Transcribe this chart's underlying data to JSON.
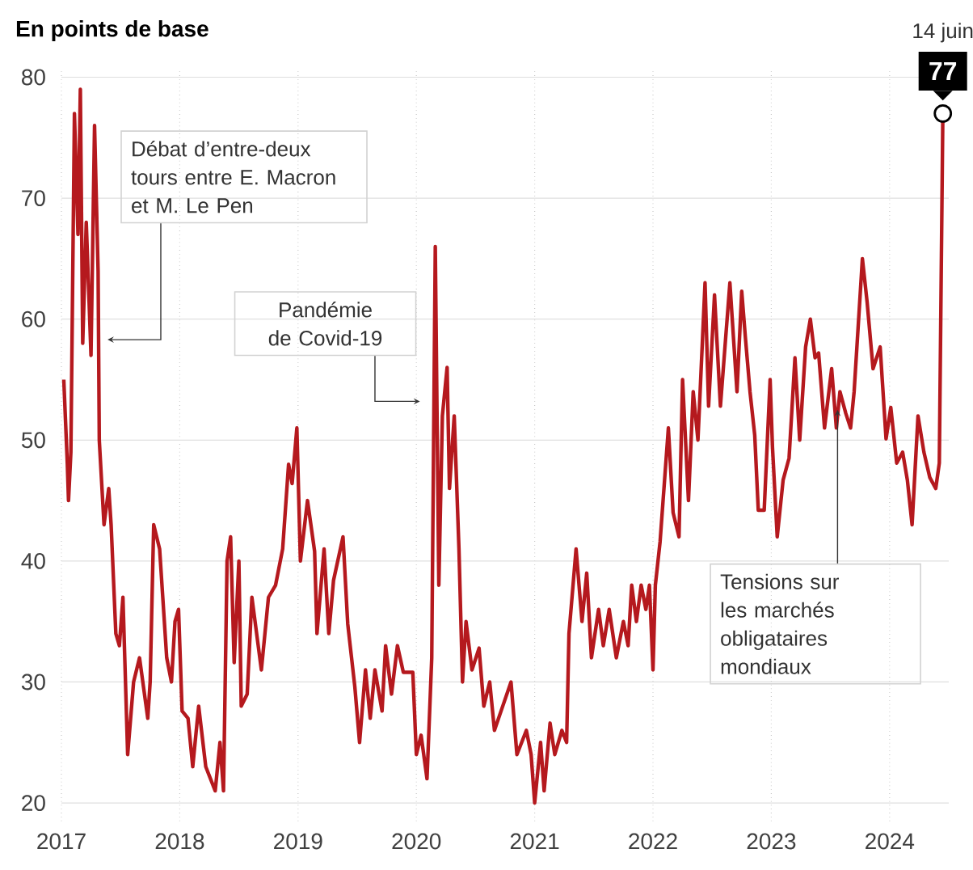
{
  "chart_data": {
    "type": "line",
    "ylabel": "En points de base",
    "x": [
      2017.02,
      2017.05,
      2017.06,
      2017.08,
      2017.11,
      2017.14,
      2017.16,
      2017.18,
      2017.21,
      2017.25,
      2017.28,
      2017.31,
      2017.32,
      2017.36,
      2017.4,
      2017.42,
      2017.46,
      2017.49,
      2017.52,
      2017.56,
      2017.61,
      2017.66,
      2017.73,
      2017.75,
      2017.78,
      2017.83,
      2017.89,
      2017.93,
      2017.96,
      2017.99,
      2018.02,
      2018.07,
      2018.11,
      2018.16,
      2018.22,
      2018.3,
      2018.34,
      2018.37,
      2018.4,
      2018.43,
      2018.46,
      2018.5,
      2018.52,
      2018.57,
      2018.61,
      2018.69,
      2018.75,
      2018.81,
      2018.87,
      2018.92,
      2018.95,
      2018.99,
      2019.02,
      2019.08,
      2019.14,
      2019.16,
      2019.22,
      2019.26,
      2019.3,
      2019.38,
      2019.42,
      2019.48,
      2019.52,
      2019.57,
      2019.61,
      2019.65,
      2019.71,
      2019.74,
      2019.79,
      2019.84,
      2019.89,
      2019.97,
      2020.0,
      2020.04,
      2020.09,
      2020.13,
      2020.16,
      2020.19,
      2020.22,
      2020.26,
      2020.28,
      2020.32,
      2020.36,
      2020.39,
      2020.42,
      2020.47,
      2020.53,
      2020.57,
      2020.62,
      2020.66,
      2020.73,
      2020.8,
      2020.85,
      2020.93,
      2020.97,
      2021.0,
      2021.05,
      2021.08,
      2021.13,
      2021.17,
      2021.23,
      2021.27,
      2021.29,
      2021.35,
      2021.4,
      2021.44,
      2021.48,
      2021.54,
      2021.58,
      2021.63,
      2021.69,
      2021.75,
      2021.79,
      2021.82,
      2021.86,
      2021.9,
      2021.94,
      2021.97,
      2022.0,
      2022.02,
      2022.06,
      2022.13,
      2022.17,
      2022.22,
      2022.25,
      2022.3,
      2022.34,
      2022.38,
      2022.44,
      2022.47,
      2022.52,
      2022.57,
      2022.65,
      2022.71,
      2022.75,
      2022.78,
      2022.82,
      2022.86,
      2022.89,
      2022.94,
      2022.99,
      2023.01,
      2023.05,
      2023.1,
      2023.15,
      2023.2,
      2023.24,
      2023.29,
      2023.33,
      2023.37,
      2023.4,
      2023.45,
      2023.51,
      2023.55,
      2023.58,
      2023.63,
      2023.67,
      2023.7,
      2023.77,
      2023.81,
      2023.86,
      2023.92,
      2023.97,
      2024.01,
      2024.06,
      2024.11,
      2024.15,
      2024.19,
      2024.24,
      2024.29,
      2024.34,
      2024.39,
      2024.42,
      2024.45
    ],
    "values": [
      55,
      48,
      45,
      49,
      77,
      67,
      79,
      58,
      68,
      57,
      76,
      64,
      50,
      43,
      46,
      43,
      34,
      33,
      37,
      24,
      30,
      32,
      27,
      30,
      43,
      41,
      32,
      30,
      35,
      36,
      27.6,
      27,
      23,
      28,
      23,
      21,
      25,
      21,
      40,
      42,
      31.6,
      40,
      28,
      29,
      37,
      31,
      37,
      38,
      41,
      48,
      46.4,
      51,
      40,
      45,
      40.8,
      34,
      41,
      34,
      38.4,
      42,
      34.8,
      29.6,
      25,
      31,
      27,
      31,
      27.6,
      33,
      29,
      33,
      30.8,
      30.8,
      24,
      25.6,
      22,
      32,
      66,
      38,
      52,
      56,
      46,
      52,
      41,
      30,
      35,
      31,
      32.8,
      28,
      30,
      26,
      28,
      30,
      24,
      26,
      24,
      20,
      25,
      21,
      26.6,
      24,
      26,
      25,
      34,
      41,
      35,
      39,
      32,
      36,
      33,
      36,
      32,
      35,
      33,
      38,
      35,
      38,
      36,
      38,
      31,
      38,
      41.6,
      51,
      44,
      42,
      55,
      45,
      54,
      50,
      63,
      52.8,
      62,
      52.8,
      63,
      54,
      62.3,
      58.6,
      54,
      50.4,
      44.2,
      44.2,
      55,
      49.4,
      42,
      46.7,
      48.5,
      56.8,
      50,
      57.7,
      60,
      56.8,
      57.2,
      51,
      55.9,
      51,
      54,
      52.2,
      51,
      54,
      65,
      61.4,
      55.9,
      57.7,
      50.1,
      52.7,
      48.1,
      49,
      46.7,
      43,
      52,
      49,
      46.9,
      46,
      48.1,
      77
    ],
    "value_labels": [
      null,
      null,
      null,
      null,
      null,
      null,
      null,
      null,
      null,
      null,
      null,
      null,
      null,
      null,
      null,
      null,
      null,
      null,
      null,
      null,
      null,
      null,
      null,
      null,
      null,
      null,
      null,
      null,
      null,
      null,
      null,
      null,
      null,
      null,
      null,
      null,
      null,
      null,
      null,
      null,
      null,
      null,
      null,
      null,
      null,
      null,
      null,
      null,
      null,
      null,
      null,
      null,
      null,
      null,
      null,
      null,
      null,
      null,
      null,
      null,
      null,
      null,
      null,
      null,
      null,
      null,
      null,
      null,
      null,
      null,
      null,
      null,
      null,
      null,
      null,
      null,
      null,
      null,
      null,
      null,
      null,
      null,
      null,
      null,
      null,
      null,
      null,
      null,
      null,
      null,
      null,
      null,
      null,
      null,
      null,
      null,
      null,
      null,
      null,
      null,
      null,
      null,
      null,
      null,
      null,
      null,
      null,
      null,
      null,
      null,
      null,
      null,
      null,
      null,
      null,
      null,
      null,
      null,
      null,
      null,
      null,
      null,
      null,
      null,
      null,
      null,
      null,
      null,
      null,
      null,
      null,
      null,
      null,
      null,
      null,
      null,
      null,
      null,
      null,
      null,
      null,
      null,
      null,
      null,
      null,
      null,
      null,
      null,
      null,
      null,
      null,
      null,
      null,
      null,
      null,
      null,
      null,
      null,
      null,
      null,
      null,
      null,
      null,
      null,
      null,
      null,
      null,
      null,
      null,
      null,
      null,
      null,
      null,
      "77"
    ],
    "color": "#b5191e",
    "xlim": [
      2017,
      2024.5
    ],
    "xticks": [
      2017,
      2018,
      2019,
      2020,
      2021,
      2022,
      2023,
      2024
    ],
    "ylim": [
      18.5,
      80.5
    ],
    "yticks": [
      20,
      30,
      40,
      50,
      60,
      70,
      80
    ],
    "grid": true,
    "line_style": "solid",
    "annotations": [
      "Débat d’entre-deux tours entre E. Macron et M. Le Pen",
      "Pandémie de Covid-19",
      {
        "text": "Tensions sur les marchés obligataires mondiaux",
        "x": 2023.56,
        "y": 52.5
      },
      "14 juin"
    ]
  }
}
